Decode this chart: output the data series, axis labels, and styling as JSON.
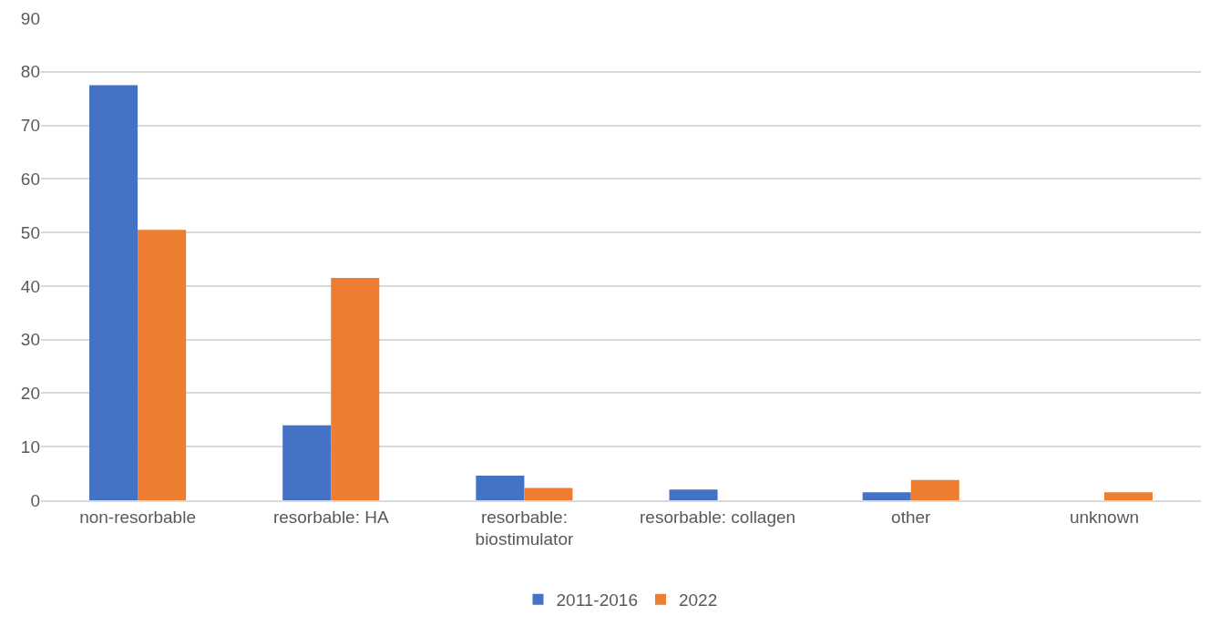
{
  "chart_data": {
    "type": "bar",
    "categories": [
      "non-resorbable",
      "resorbable: HA",
      "resorbable: biostimulator",
      "resorbable: collagen",
      "other",
      "unknown"
    ],
    "series": [
      {
        "name": "2011-2016",
        "color": "#4472c4",
        "values": [
          77.5,
          14,
          4.6,
          2.0,
          1.5,
          0
        ]
      },
      {
        "name": "2022",
        "color": "#ed7d31",
        "values": [
          50.5,
          41.5,
          2.3,
          0,
          3.8,
          1.5
        ]
      }
    ],
    "ylim": [
      0,
      90
    ],
    "yticks": [
      0,
      10,
      20,
      30,
      40,
      50,
      60,
      70,
      80,
      90
    ],
    "grid": "y",
    "legend": "bottom"
  }
}
